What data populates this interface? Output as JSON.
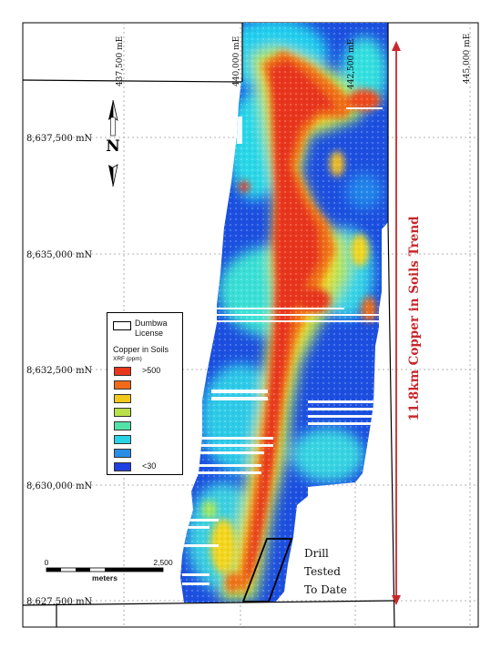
{
  "easting_labels": [
    "437,500 mE",
    "440,000 mE",
    "442,500 mE",
    "445,000 mE"
  ],
  "northing_labels": [
    "8,637,500 mN",
    "8,635,000 mN",
    "8,632,500 mN",
    "8,630,000 mN",
    "8,627,500 mN"
  ],
  "north_arrow": {
    "label": "N",
    "icon": "north-arrow-icon"
  },
  "legend": {
    "license_label": "Dumbwa License",
    "title": "Copper in Soils",
    "subtitle": "XRF (ppm)",
    "high_label": ">500",
    "low_label": "<30",
    "colors": [
      "#e8361b",
      "#f06a1a",
      "#f2c81a",
      "#b8e04a",
      "#52e2a8",
      "#2ad2e6",
      "#2a8ee6",
      "#1f3fe0"
    ]
  },
  "scale_bar": {
    "start": "0",
    "end": "2,500",
    "unit": "meters"
  },
  "drill_label": [
    "Drill",
    "Tested",
    "To Date"
  ],
  "trend_label": "11.8km Copper in Soils Trend",
  "trend_color": "#c8282c"
}
